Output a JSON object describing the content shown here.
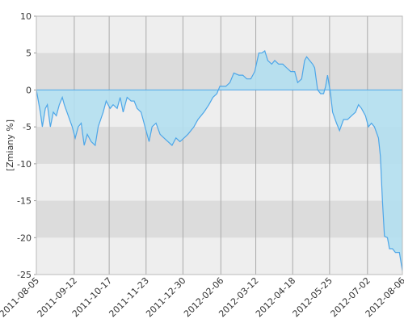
{
  "chart_data": {
    "type": "area",
    "y_label": "[Zmiany %]",
    "x": [
      "2011-08-05",
      "2011-08-09",
      "2011-08-11",
      "2011-08-14",
      "2011-08-16",
      "2011-08-19",
      "2011-08-22",
      "2011-08-25",
      "2011-08-28",
      "2011-08-31",
      "2011-09-02",
      "2011-09-06",
      "2011-09-10",
      "2011-09-13",
      "2011-09-16",
      "2011-09-19",
      "2011-09-22",
      "2011-09-25",
      "2011-09-29",
      "2011-10-03",
      "2011-10-06",
      "2011-10-11",
      "2011-10-14",
      "2011-10-18",
      "2011-10-21",
      "2011-10-25",
      "2011-10-28",
      "2011-10-31",
      "2011-11-04",
      "2011-11-08",
      "2011-11-11",
      "2011-11-14",
      "2011-11-18",
      "2011-11-22",
      "2011-11-26",
      "2011-11-29",
      "2011-12-03",
      "2011-12-07",
      "2011-12-11",
      "2011-12-15",
      "2011-12-19",
      "2011-12-23",
      "2011-12-27",
      "2011-12-31",
      "2012-01-04",
      "2012-01-10",
      "2012-01-14",
      "2012-01-20",
      "2012-01-25",
      "2012-01-29",
      "2012-02-02",
      "2012-02-05",
      "2012-02-08",
      "2012-02-11",
      "2012-02-15",
      "2012-02-19",
      "2012-02-24",
      "2012-02-28",
      "2012-03-03",
      "2012-03-07",
      "2012-03-11",
      "2012-03-15",
      "2012-03-18",
      "2012-03-21",
      "2012-03-24",
      "2012-03-28",
      "2012-03-31",
      "2012-04-04",
      "2012-04-08",
      "2012-04-12",
      "2012-04-16",
      "2012-04-20",
      "2012-04-23",
      "2012-04-27",
      "2012-04-30",
      "2012-05-02",
      "2012-05-05",
      "2012-05-08",
      "2012-05-10",
      "2012-05-13",
      "2012-05-16",
      "2012-05-19",
      "2012-05-21",
      "2012-05-23",
      "2012-05-26",
      "2012-05-28",
      "2012-06-01",
      "2012-06-04",
      "2012-06-08",
      "2012-06-12",
      "2012-06-16",
      "2012-06-20",
      "2012-06-23",
      "2012-06-26",
      "2012-06-30",
      "2012-07-03",
      "2012-07-06",
      "2012-07-09",
      "2012-07-13",
      "2012-07-15",
      "2012-07-17",
      "2012-07-19",
      "2012-07-22",
      "2012-07-24",
      "2012-07-27",
      "2012-07-30",
      "2012-08-03",
      "2012-08-06"
    ],
    "values": [
      0,
      -3,
      -5,
      -2.5,
      -2,
      -5,
      -3,
      -3.5,
      -2,
      -1,
      -2,
      -3.5,
      -5,
      -6.5,
      -5,
      -4.5,
      -7.5,
      -6,
      -7,
      -7.5,
      -5,
      -3,
      -1.5,
      -2.5,
      -2,
      -2.5,
      -1,
      -3,
      -1,
      -1.5,
      -1.5,
      -2.5,
      -3,
      -5,
      -7,
      -5,
      -4.5,
      -6,
      -6.5,
      -7,
      -7.5,
      -6.5,
      -7,
      -6.5,
      -6,
      -5,
      -4,
      -3,
      -2,
      -1,
      -0.5,
      0.5,
      0.5,
      0.5,
      1,
      2.3,
      2,
      2,
      1.5,
      1.5,
      2.5,
      5,
      5,
      5.3,
      4,
      3.5,
      4,
      3.5,
      3.5,
      3,
      2.5,
      2.5,
      1,
      1.5,
      4,
      4.5,
      4,
      3.5,
      3,
      0,
      -0.5,
      -0.5,
      0.5,
      2,
      -0.5,
      -3,
      -4.5,
      -5.5,
      -4,
      -4,
      -3.5,
      -3,
      -2,
      -2.5,
      -3.5,
      -5,
      -4.5,
      -5,
      -6.5,
      -9,
      -15,
      -19.8,
      -20,
      -21.5,
      -21.5,
      -22,
      -22,
      -24.5
    ],
    "color": "#4da6e8",
    "fill": "#b3dff0",
    "xlim": [
      "2011-08-05",
      "2012-08-06"
    ],
    "xticks": [
      "2011-08-05",
      "2011-09-12",
      "2011-10-17",
      "2011-11-23",
      "2011-12-30",
      "2012-02-06",
      "2012-03-12",
      "2012-04-18",
      "2012-05-25",
      "2012-07-02",
      "2012-08-06"
    ],
    "ylim": [
      -25,
      10
    ],
    "yticks": [
      -25,
      -20,
      -15,
      -10,
      -5,
      0,
      5,
      10
    ],
    "grid": true
  }
}
